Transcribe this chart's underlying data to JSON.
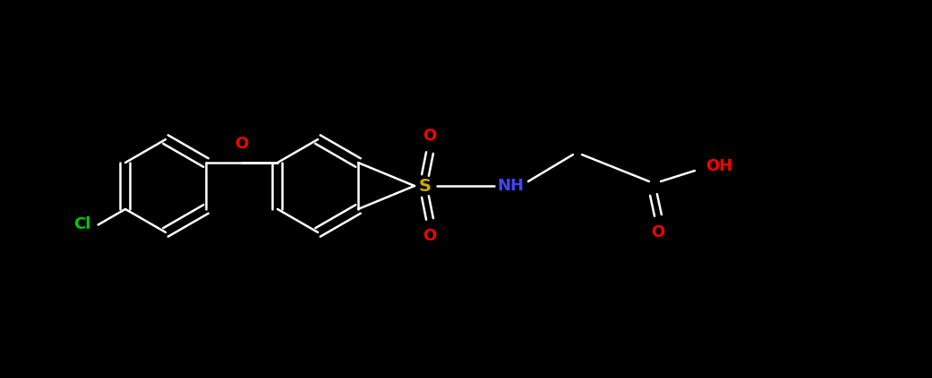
{
  "background_color": "#000000",
  "bond_color": "#ffffff",
  "atom_colors": {
    "O": "#ff0000",
    "S": "#ccaa00",
    "N": "#4444ff",
    "Cl": "#00cc00",
    "H": "#ffffff",
    "C": "#ffffff"
  },
  "figsize": [
    10.41,
    4.23
  ],
  "dpi": 100
}
